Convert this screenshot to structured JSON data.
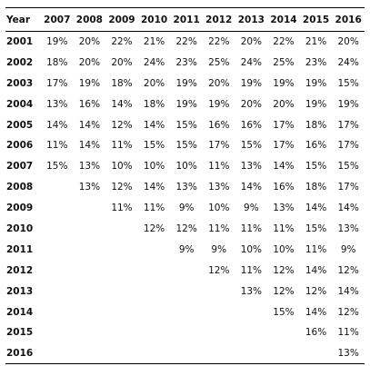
{
  "table": {
    "corner_label": "Year",
    "columns": [
      "2007",
      "2008",
      "2009",
      "2010",
      "2011",
      "2012",
      "2013",
      "2014",
      "2015",
      "2016"
    ],
    "rows": [
      {
        "year": "2001",
        "values": [
          "19%",
          "20%",
          "22%",
          "21%",
          "22%",
          "22%",
          "20%",
          "22%",
          "21%",
          "20%"
        ]
      },
      {
        "year": "2002",
        "values": [
          "18%",
          "20%",
          "20%",
          "24%",
          "23%",
          "25%",
          "24%",
          "25%",
          "23%",
          "24%"
        ]
      },
      {
        "year": "2003",
        "values": [
          "17%",
          "19%",
          "18%",
          "20%",
          "19%",
          "20%",
          "19%",
          "19%",
          "19%",
          "15%"
        ]
      },
      {
        "year": "2004",
        "values": [
          "13%",
          "16%",
          "14%",
          "18%",
          "19%",
          "19%",
          "20%",
          "20%",
          "19%",
          "19%"
        ]
      },
      {
        "year": "2005",
        "values": [
          "14%",
          "14%",
          "12%",
          "14%",
          "15%",
          "16%",
          "16%",
          "17%",
          "18%",
          "17%"
        ]
      },
      {
        "year": "2006",
        "values": [
          "11%",
          "14%",
          "11%",
          "15%",
          "15%",
          "17%",
          "15%",
          "17%",
          "16%",
          "17%"
        ]
      },
      {
        "year": "2007",
        "values": [
          "15%",
          "13%",
          "10%",
          "10%",
          "10%",
          "11%",
          "13%",
          "14%",
          "15%",
          "15%"
        ]
      },
      {
        "year": "2008",
        "values": [
          "",
          "13%",
          "12%",
          "14%",
          "13%",
          "13%",
          "14%",
          "16%",
          "18%",
          "17%"
        ]
      },
      {
        "year": "2009",
        "values": [
          "",
          "",
          "11%",
          "11%",
          "9%",
          "10%",
          "9%",
          "13%",
          "14%",
          "14%"
        ]
      },
      {
        "year": "2010",
        "values": [
          "",
          "",
          "",
          "12%",
          "12%",
          "11%",
          "11%",
          "11%",
          "15%",
          "13%"
        ]
      },
      {
        "year": "2011",
        "values": [
          "",
          "",
          "",
          "",
          "9%",
          "9%",
          "10%",
          "10%",
          "11%",
          "9%"
        ]
      },
      {
        "year": "2012",
        "values": [
          "",
          "",
          "",
          "",
          "",
          "12%",
          "11%",
          "12%",
          "14%",
          "12%"
        ]
      },
      {
        "year": "2013",
        "values": [
          "",
          "",
          "",
          "",
          "",
          "",
          "13%",
          "12%",
          "12%",
          "14%"
        ]
      },
      {
        "year": "2014",
        "values": [
          "",
          "",
          "",
          "",
          "",
          "",
          "",
          "15%",
          "14%",
          "12%"
        ]
      },
      {
        "year": "2015",
        "values": [
          "",
          "",
          "",
          "",
          "",
          "",
          "",
          "",
          "16%",
          "11%"
        ]
      },
      {
        "year": "2016",
        "values": [
          "",
          "",
          "",
          "",
          "",
          "",
          "",
          "",
          "",
          "13%"
        ]
      }
    ]
  }
}
